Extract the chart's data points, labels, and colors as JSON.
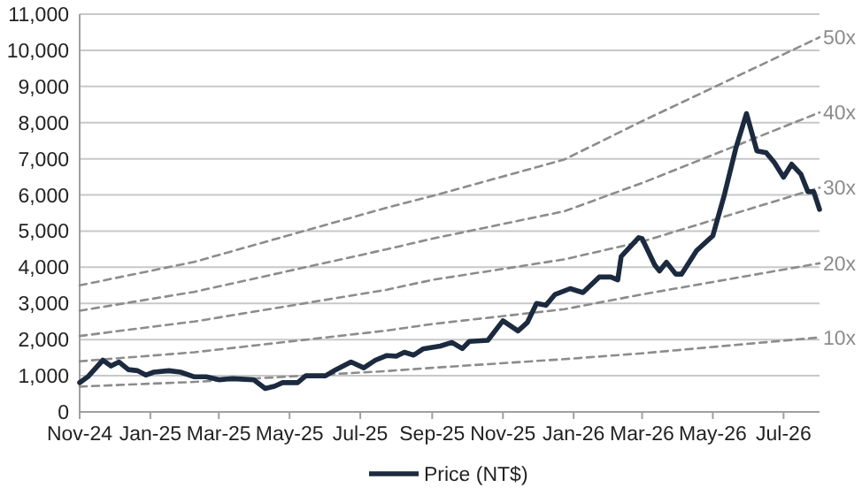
{
  "chart_data": {
    "type": "line",
    "xlim": [
      "2024-11-01",
      "2026-08-01"
    ],
    "xticks": [
      {
        "value": "2024-11-01",
        "label": "Nov-24"
      },
      {
        "value": "2025-01-01",
        "label": "Jan-25"
      },
      {
        "value": "2025-03-01",
        "label": "Mar-25"
      },
      {
        "value": "2025-05-01",
        "label": "May-25"
      },
      {
        "value": "2025-07-01",
        "label": "Jul-25"
      },
      {
        "value": "2025-09-01",
        "label": "Sep-25"
      },
      {
        "value": "2025-11-01",
        "label": "Nov-25"
      },
      {
        "value": "2026-01-01",
        "label": "Jan-26"
      },
      {
        "value": "2026-03-01",
        "label": "Mar-26"
      },
      {
        "value": "2026-05-01",
        "label": "May-26"
      },
      {
        "value": "2026-07-01",
        "label": "Jul-26"
      }
    ],
    "ylim": [
      0,
      11000
    ],
    "yticks": [
      {
        "value": 0,
        "label": "0"
      },
      {
        "value": 1000,
        "label": "1,000"
      },
      {
        "value": 2000,
        "label": "2,000"
      },
      {
        "value": 3000,
        "label": "3,000"
      },
      {
        "value": 4000,
        "label": "4,000"
      },
      {
        "value": 5000,
        "label": "5,000"
      },
      {
        "value": 6000,
        "label": "6,000"
      },
      {
        "value": 7000,
        "label": "7,000"
      },
      {
        "value": 8000,
        "label": "8,000"
      },
      {
        "value": 9000,
        "label": "9,000"
      },
      {
        "value": 10000,
        "label": "10,000"
      },
      {
        "value": 11000,
        "label": "11,000"
      }
    ],
    "grid": "y",
    "legend": "bottom",
    "series": [
      {
        "name": "50x",
        "color": "#8c8c8c",
        "line_style": "dashed",
        "x": [
          "2024-11-01",
          "2025-02-08",
          "2025-07-24",
          "2025-09-01",
          "2025-12-24",
          "2026-03-01",
          "2026-08-01"
        ],
        "values": [
          3500,
          4150,
          5650,
          5970,
          6980,
          8040,
          10360
        ]
      },
      {
        "name": "40x",
        "color": "#8c8c8c",
        "line_style": "dashed",
        "x": [
          "2024-11-01",
          "2025-02-08",
          "2025-07-24",
          "2025-09-01",
          "2025-12-24",
          "2026-03-01",
          "2026-08-01"
        ],
        "values": [
          2800,
          3320,
          4500,
          4790,
          5550,
          6330,
          8280
        ]
      },
      {
        "name": "30x",
        "color": "#8c8c8c",
        "line_style": "dashed",
        "x": [
          "2024-11-01",
          "2025-02-08",
          "2025-07-24",
          "2025-09-01",
          "2025-12-24",
          "2026-03-01",
          "2026-08-01"
        ],
        "values": [
          2100,
          2500,
          3380,
          3650,
          4220,
          4710,
          6200
        ]
      },
      {
        "name": "20x",
        "color": "#8c8c8c",
        "line_style": "dashed",
        "x": [
          "2024-11-01",
          "2025-02-08",
          "2025-07-24",
          "2025-09-01",
          "2025-12-24",
          "2026-03-01",
          "2026-08-01"
        ],
        "values": [
          1400,
          1650,
          2250,
          2430,
          2840,
          3250,
          4110
        ]
      },
      {
        "name": "10x",
        "color": "#8c8c8c",
        "line_style": "dashed",
        "x": [
          "2024-11-01",
          "2025-02-08",
          "2025-07-24",
          "2025-09-01",
          "2025-12-24",
          "2026-03-01",
          "2026-08-01"
        ],
        "values": [
          700,
          830,
          1130,
          1220,
          1460,
          1620,
          2060
        ]
      },
      {
        "name": "Price (NT$)",
        "color": "#1c2a3f",
        "line_style": "solid",
        "x": [
          "2024-11-01",
          "2024-11-08",
          "2024-11-21",
          "2024-11-28",
          "2024-12-05",
          "2024-12-13",
          "2024-12-21",
          "2024-12-28",
          "2025-01-04",
          "2025-01-17",
          "2025-01-27",
          "2025-02-08",
          "2025-02-18",
          "2025-03-01",
          "2025-03-13",
          "2025-03-31",
          "2025-04-10",
          "2025-04-18",
          "2025-04-25",
          "2025-05-08",
          "2025-05-15",
          "2025-06-01",
          "2025-06-10",
          "2025-06-23",
          "2025-07-04",
          "2025-07-14",
          "2025-07-24",
          "2025-08-01",
          "2025-08-08",
          "2025-08-16",
          "2025-08-24",
          "2025-09-08",
          "2025-09-18",
          "2025-09-27",
          "2025-10-03",
          "2025-10-19",
          "2025-11-01",
          "2025-11-14",
          "2025-11-22",
          "2025-11-30",
          "2025-12-08",
          "2025-12-16",
          "2025-12-29",
          "2026-01-09",
          "2026-01-23",
          "2026-02-02",
          "2026-02-08",
          "2026-02-11",
          "2026-02-26",
          "2026-03-01",
          "2026-03-12",
          "2026-03-16",
          "2026-03-22",
          "2026-03-30",
          "2026-04-04",
          "2026-04-17",
          "2026-05-01",
          "2026-05-11",
          "2026-05-21",
          "2026-05-30",
          "2026-06-03",
          "2026-06-08",
          "2026-06-16",
          "2026-06-23",
          "2026-07-01",
          "2026-07-08",
          "2026-07-16",
          "2026-07-22",
          "2026-07-27",
          "2026-08-01"
        ],
        "values": [
          810,
          970,
          1430,
          1270,
          1380,
          1170,
          1140,
          1020,
          1100,
          1140,
          1100,
          970,
          970,
          890,
          920,
          890,
          650,
          710,
          810,
          810,
          1000,
          1000,
          1170,
          1380,
          1220,
          1430,
          1560,
          1540,
          1650,
          1570,
          1740,
          1820,
          1920,
          1750,
          1950,
          1980,
          2520,
          2240,
          2470,
          3000,
          2950,
          3250,
          3410,
          3300,
          3730,
          3730,
          3650,
          4300,
          4820,
          4790,
          4060,
          3900,
          4140,
          3810,
          3810,
          4460,
          4870,
          6010,
          7310,
          8250,
          7790,
          7220,
          7170,
          6900,
          6490,
          6850,
          6570,
          6090,
          6090,
          5600
        ]
      }
    ]
  }
}
